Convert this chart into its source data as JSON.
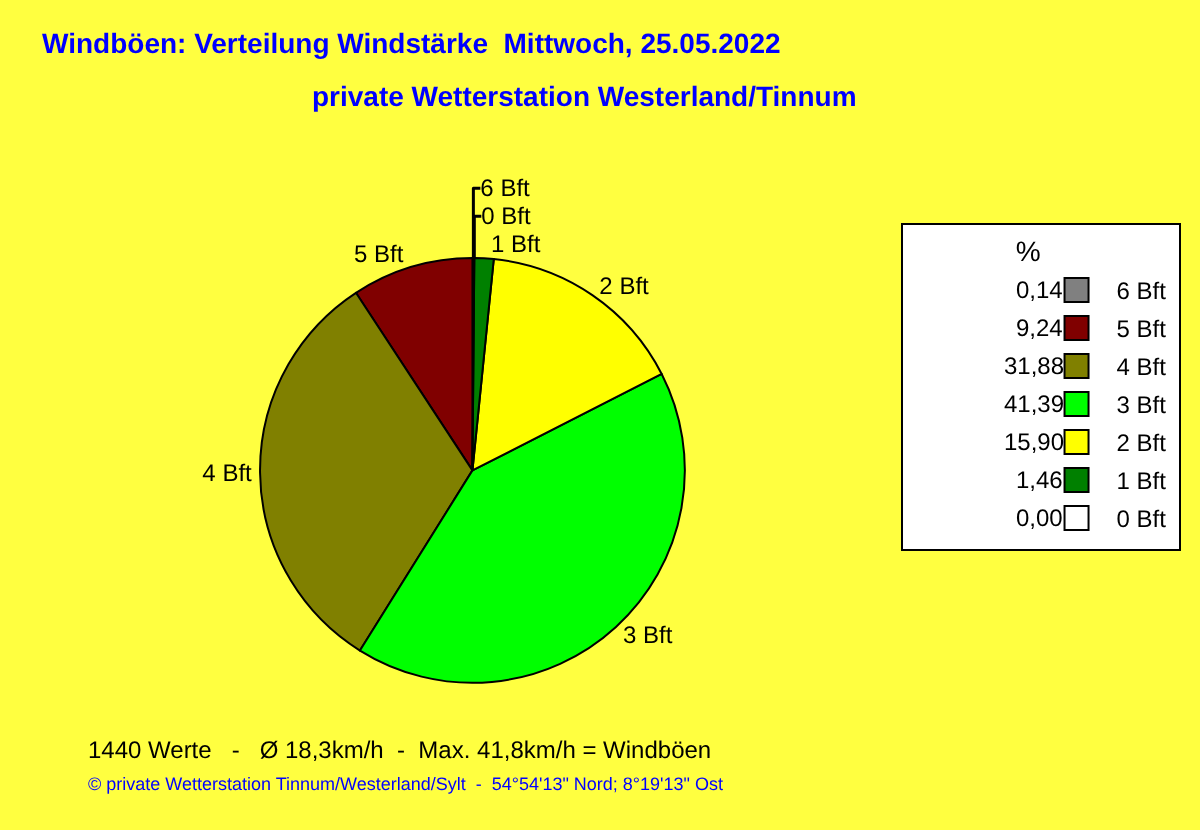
{
  "chart_data": {
    "type": "pie",
    "title": "Windböen: Verteilung Windstärke  Mittwoch, 25.05.2022",
    "subtitle": "private Wetterstation Westerland/Tinnum",
    "legend_title": "%",
    "categories": [
      "6 Bft",
      "5 Bft",
      "4 Bft",
      "3 Bft",
      "2 Bft",
      "1 Bft",
      "0 Bft"
    ],
    "values": [
      0.14,
      9.24,
      31.88,
      41.39,
      15.9,
      1.46,
      0.0
    ],
    "value_labels": [
      "0,14",
      "9,24",
      "31,88",
      "41,39",
      "15,90",
      "1,46",
      "0,00"
    ],
    "colors": [
      "#808080",
      "#800000",
      "#808000",
      "#00ff00",
      "#ffff00",
      "#008000",
      "#ffffff"
    ],
    "legend": "top right",
    "annotations": [
      "1440 Werte   -   Ø 18,3km/h  -  Max. 41,8km/h = Windböen",
      "© private Wetterstation Tinnum/Westerland/Sylt  -  54°54'13\" Nord; 8°19'13\" Ost"
    ]
  }
}
